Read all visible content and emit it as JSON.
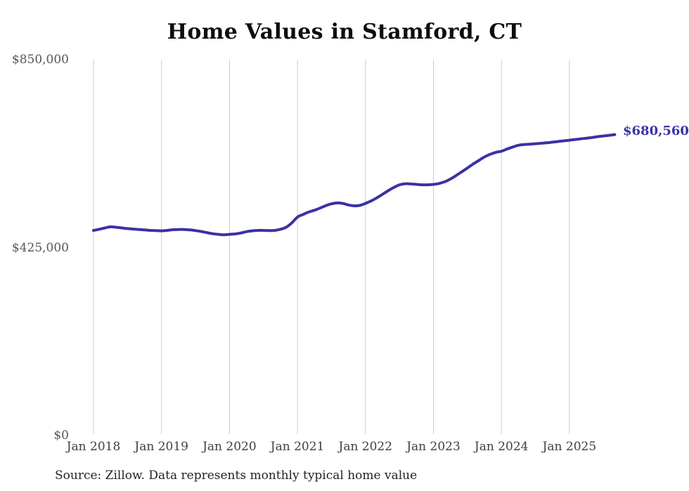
{
  "page": {
    "background": "#ffffff"
  },
  "chart_data": {
    "type": "line",
    "title": "Home Values in Stamford, CT",
    "source_note": "Source: Zillow. Data represents monthly typical home value",
    "end_label": "$680,560",
    "latest_value": 680560,
    "ylim": [
      0,
      850000
    ],
    "grid": "vertical-only",
    "legend": "none",
    "yticks": [
      {
        "value": 0,
        "label": "$0"
      },
      {
        "value": 425000,
        "label": "$425,000"
      },
      {
        "value": 850000,
        "label": "$850,000"
      }
    ],
    "xticks": [
      {
        "month": "2018-01",
        "label": "Jan 2018"
      },
      {
        "month": "2019-01",
        "label": "Jan 2019"
      },
      {
        "month": "2020-01",
        "label": "Jan 2020"
      },
      {
        "month": "2021-01",
        "label": "Jan 2021"
      },
      {
        "month": "2022-01",
        "label": "Jan 2022"
      },
      {
        "month": "2023-01",
        "label": "Jan 2023"
      },
      {
        "month": "2024-01",
        "label": "Jan 2024"
      },
      {
        "month": "2025-01",
        "label": "Jan 2025"
      }
    ],
    "series": [
      {
        "name": "Monthly typical home value",
        "color": "#3a31a5",
        "x": [
          "2018-01",
          "2018-02",
          "2018-03",
          "2018-04",
          "2018-05",
          "2018-06",
          "2018-07",
          "2018-08",
          "2018-09",
          "2018-10",
          "2018-11",
          "2018-12",
          "2019-01",
          "2019-02",
          "2019-03",
          "2019-04",
          "2019-05",
          "2019-06",
          "2019-07",
          "2019-08",
          "2019-09",
          "2019-10",
          "2019-11",
          "2019-12",
          "2020-01",
          "2020-02",
          "2020-03",
          "2020-04",
          "2020-05",
          "2020-06",
          "2020-07",
          "2020-08",
          "2020-09",
          "2020-10",
          "2020-11",
          "2020-12",
          "2021-01",
          "2021-02",
          "2021-03",
          "2021-04",
          "2021-05",
          "2021-06",
          "2021-07",
          "2021-08",
          "2021-09",
          "2021-10",
          "2021-11",
          "2021-12",
          "2022-01",
          "2022-02",
          "2022-03",
          "2022-04",
          "2022-05",
          "2022-06",
          "2022-07",
          "2022-08",
          "2022-09",
          "2022-10",
          "2022-11",
          "2022-12",
          "2023-01",
          "2023-02",
          "2023-03",
          "2023-04",
          "2023-05",
          "2023-06",
          "2023-07",
          "2023-08",
          "2023-09",
          "2023-10",
          "2023-11",
          "2023-12",
          "2024-01",
          "2024-02",
          "2024-03",
          "2024-04",
          "2024-05",
          "2024-06",
          "2024-07",
          "2024-08",
          "2024-09",
          "2024-10",
          "2024-11",
          "2024-12",
          "2025-01",
          "2025-02",
          "2025-03",
          "2025-04",
          "2025-05",
          "2025-06",
          "2025-07",
          "2025-08",
          "2025-09"
        ],
        "values": [
          464000,
          466500,
          469500,
          472000,
          471000,
          469500,
          468000,
          467000,
          466000,
          465000,
          464000,
          463500,
          463000,
          464000,
          465500,
          466000,
          466000,
          465000,
          463500,
          461500,
          459000,
          456500,
          455000,
          454000,
          455000,
          456000,
          458000,
          461000,
          463000,
          464000,
          464000,
          463500,
          464000,
          466500,
          471000,
          481000,
          494000,
          500000,
          505500,
          509500,
          514500,
          520000,
          524000,
          526000,
          525000,
          521500,
          519500,
          520500,
          525000,
          530500,
          537500,
          545500,
          553500,
          561000,
          567000,
          569500,
          569000,
          568000,
          567000,
          567000,
          568000,
          570000,
          574000,
          580000,
          588000,
          596500,
          605000,
          614000,
          622000,
          630000,
          636000,
          640500,
          643000,
          648000,
          652500,
          656500,
          658000,
          659000,
          660000,
          661000,
          662000,
          663500,
          665000,
          666500,
          668000,
          669500,
          671000,
          672500,
          674000,
          676000,
          677500,
          679000,
          680560
        ]
      }
    ],
    "colors": {
      "line": "#3a31a5",
      "grid": "#cccccc",
      "ytick_text": "#565656",
      "xtick_text": "#3f3f3f",
      "title_text": "#0d0d0d",
      "source_text": "#232323",
      "end_label_text": "#3a31a5"
    }
  }
}
